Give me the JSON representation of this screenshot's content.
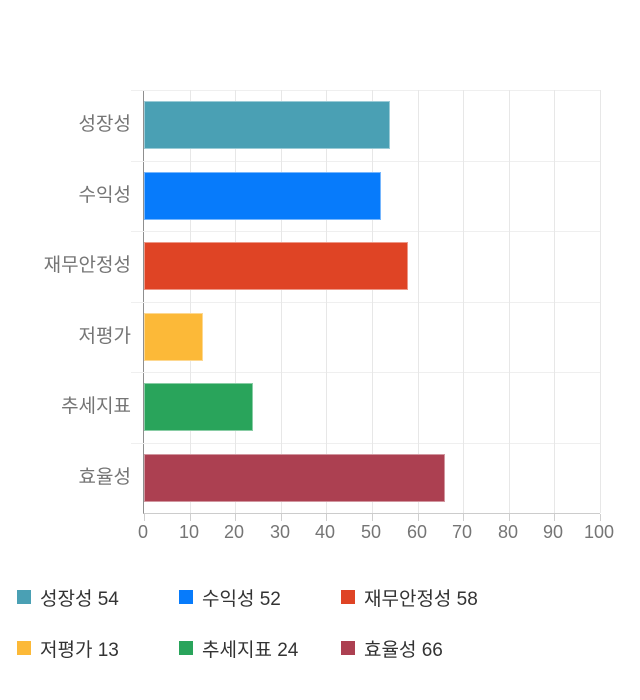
{
  "chart_data": {
    "type": "bar",
    "orientation": "horizontal",
    "title": "",
    "xlabel": "",
    "ylabel": "",
    "categories": [
      "성장성",
      "수익성",
      "재무안정성",
      "저평가",
      "추세지표",
      "효율성"
    ],
    "values": [
      54,
      52,
      58,
      13,
      24,
      66
    ],
    "bar_colors": [
      "#4aa0b4",
      "#077bfb",
      "#df4425",
      "#fcb938",
      "#29a45b",
      "#ac4051"
    ],
    "xlim": [
      0,
      100
    ],
    "x_ticks": [
      0,
      10,
      20,
      30,
      40,
      50,
      60,
      70,
      80,
      90,
      100
    ],
    "grid": true,
    "legend_position": "bottom"
  },
  "legend": {
    "items": [
      {
        "label": "성장성 54",
        "color": "#4aa0b4"
      },
      {
        "label": "수익성 52",
        "color": "#077bfb"
      },
      {
        "label": "재무안정성 58",
        "color": "#df4425"
      },
      {
        "label": "저평가 13",
        "color": "#fcb938"
      },
      {
        "label": "추세지표 24",
        "color": "#29a45b"
      },
      {
        "label": "효율성 66",
        "color": "#ac4051"
      }
    ]
  },
  "colors": {
    "axis_text": "#757575",
    "legend_text": "#333333",
    "gridline": "#e7e7e7",
    "row_line": "#efefef",
    "y_axis_line": "#8f8f8f",
    "x_axis_line": "#cccccc"
  }
}
